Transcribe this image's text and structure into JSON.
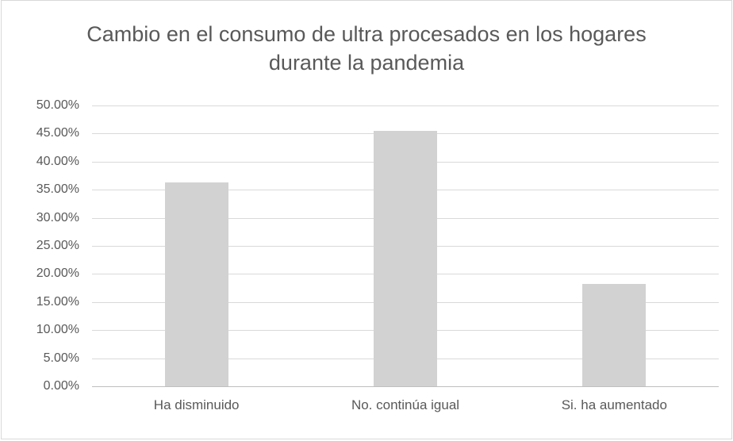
{
  "chart_data": {
    "type": "bar",
    "title": "Cambio en el consumo de ultra procesados en los hogares durante la pandemia",
    "categories": [
      "Ha disminuido",
      "No. continúa igual",
      "Si. ha aumentado"
    ],
    "values": [
      36.36,
      45.45,
      18.18
    ],
    "value_unit": "percent",
    "xlabel": "",
    "ylabel": "",
    "ylim": [
      0,
      50
    ],
    "ticks": [
      {
        "label": "0.00%",
        "value": 0
      },
      {
        "label": "5.00%",
        "value": 5
      },
      {
        "label": "10.00%",
        "value": 10
      },
      {
        "label": "15.00%",
        "value": 15
      },
      {
        "label": "20.00%",
        "value": 20
      },
      {
        "label": "25.00%",
        "value": 25
      },
      {
        "label": "30.00%",
        "value": 30
      },
      {
        "label": "35.00%",
        "value": 35
      },
      {
        "label": "40.00%",
        "value": 40
      },
      {
        "label": "45.00%",
        "value": 45
      },
      {
        "label": "50.00%",
        "value": 50
      }
    ],
    "grid": true,
    "legend": false,
    "colors": {
      "bar": "#d2d2d2",
      "gridline": "#d9d9d9",
      "zero_line": "#bfbfbf",
      "text": "#595959",
      "frame_border": "#d9d9d9",
      "background": "#ffffff"
    }
  }
}
